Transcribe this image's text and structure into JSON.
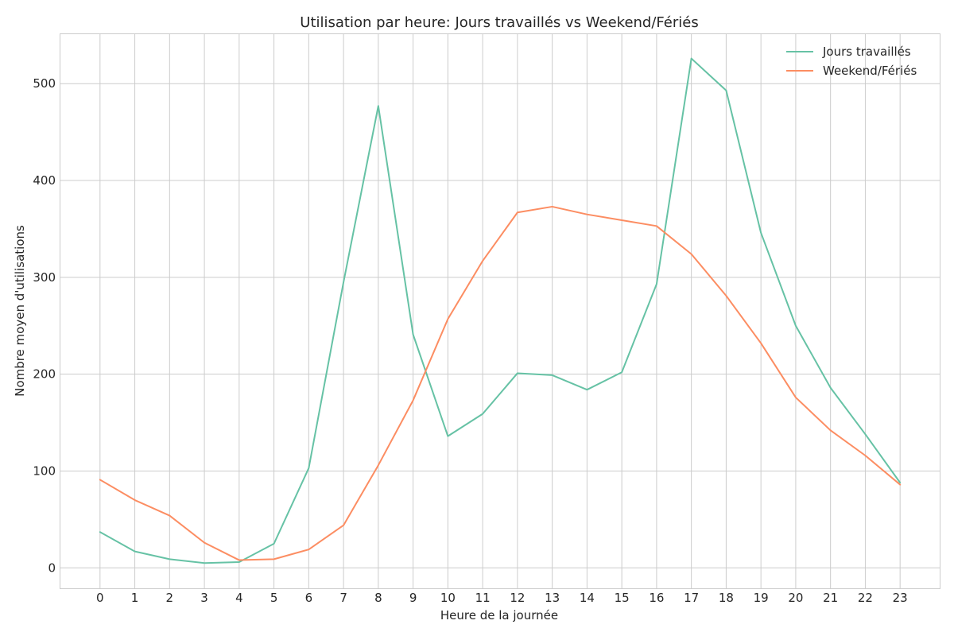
{
  "chart_data": {
    "type": "line",
    "title": "Utilisation par heure: Jours travaillés vs Weekend/Fériés",
    "xlabel": "Heure de la journée",
    "ylabel": "Nombre moyen d'utilisations",
    "x": [
      0,
      1,
      2,
      3,
      4,
      5,
      6,
      7,
      8,
      9,
      10,
      11,
      12,
      13,
      14,
      15,
      16,
      17,
      18,
      19,
      20,
      21,
      22,
      23
    ],
    "x_tick_labels": [
      "0",
      "1",
      "2",
      "3",
      "4",
      "5",
      "6",
      "7",
      "8",
      "9",
      "10",
      "11",
      "12",
      "13",
      "14",
      "15",
      "16",
      "17",
      "18",
      "19",
      "20",
      "21",
      "22",
      "23"
    ],
    "y_ticks": [
      0,
      100,
      200,
      300,
      400,
      500
    ],
    "y_tick_labels": [
      "0",
      "100",
      "200",
      "300",
      "400",
      "500"
    ],
    "xlim": [
      -1.15,
      24.15
    ],
    "ylim": [
      -21.5,
      551.5
    ],
    "grid": true,
    "legend_position": "top-right",
    "series": [
      {
        "name": "Jours travaillés",
        "color": "#66c2a5",
        "values": [
          37,
          17,
          9,
          5,
          6,
          25,
          103,
          295,
          477,
          241,
          136,
          159,
          201,
          199,
          184,
          202,
          293,
          526,
          493,
          346,
          250,
          186,
          138,
          88
        ]
      },
      {
        "name": "Weekend/Fériés",
        "color": "#fc8d62",
        "values": [
          91,
          70,
          54,
          26,
          8,
          9,
          19,
          44,
          106,
          173,
          257,
          317,
          367,
          373,
          365,
          359,
          353,
          324,
          281,
          232,
          176,
          142,
          116,
          86
        ]
      }
    ]
  }
}
